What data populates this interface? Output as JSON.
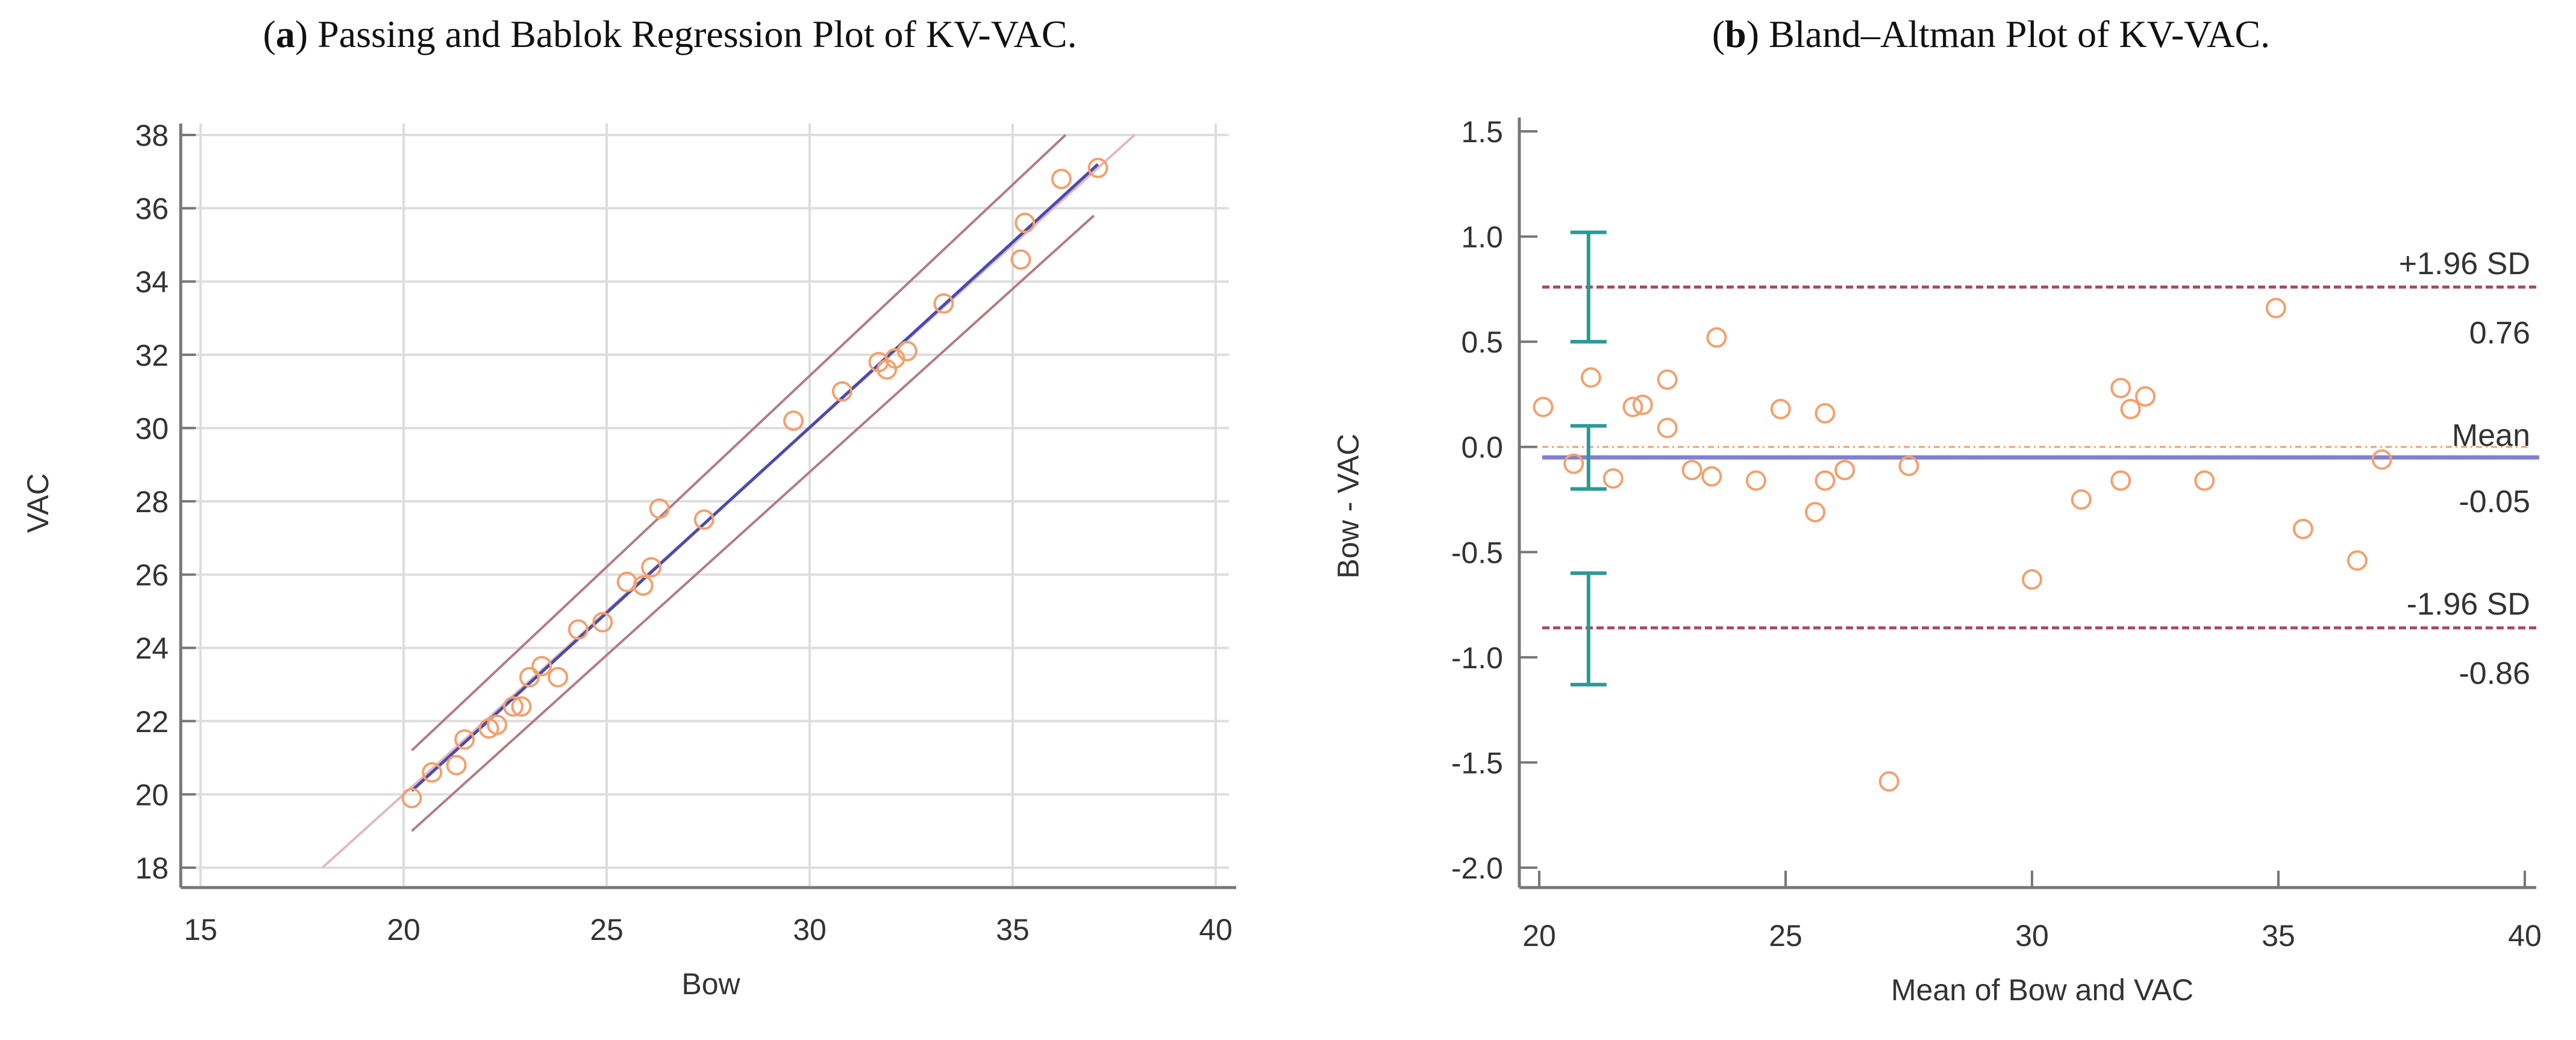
{
  "chart_data": [
    {
      "type": "scatter",
      "panel_letter": "a",
      "title": ") Passing and Bablok Regression Plot of KV-VAC.",
      "xlabel": "Bow",
      "ylabel": "VAC",
      "xlim": [
        15,
        40
      ],
      "ylim": [
        18,
        38
      ],
      "xticks": [
        15,
        20,
        25,
        30,
        35,
        40
      ],
      "yticks": [
        18,
        20,
        22,
        24,
        26,
        28,
        30,
        32,
        34,
        36,
        38
      ],
      "grid": true,
      "points": [
        [
          20.2,
          19.9
        ],
        [
          20.7,
          20.6
        ],
        [
          21.3,
          20.8
        ],
        [
          21.5,
          21.5
        ],
        [
          22.1,
          21.8
        ],
        [
          22.3,
          21.9
        ],
        [
          22.7,
          22.4
        ],
        [
          22.9,
          22.4
        ],
        [
          23.1,
          23.2
        ],
        [
          23.4,
          23.5
        ],
        [
          23.8,
          23.2
        ],
        [
          24.3,
          24.5
        ],
        [
          24.9,
          24.7
        ],
        [
          25.5,
          25.8
        ],
        [
          25.9,
          25.7
        ],
        [
          26.1,
          26.2
        ],
        [
          26.3,
          27.8
        ],
        [
          27.4,
          27.5
        ],
        [
          29.6,
          30.2
        ],
        [
          30.8,
          31.0
        ],
        [
          31.7,
          31.8
        ],
        [
          31.9,
          31.6
        ],
        [
          32.1,
          31.9
        ],
        [
          32.4,
          32.1
        ],
        [
          33.3,
          33.4
        ],
        [
          35.3,
          35.6
        ],
        [
          35.2,
          34.6
        ],
        [
          36.2,
          36.8
        ],
        [
          37.1,
          37.1
        ]
      ],
      "regression_line": [
        [
          20.2,
          20.1
        ],
        [
          37.1,
          37.2
        ]
      ],
      "ci_upper_line": [
        [
          20.2,
          21.2
        ],
        [
          36.3,
          38.0
        ]
      ],
      "ci_lower_line": [
        [
          20.2,
          19.0
        ],
        [
          37.0,
          35.8
        ]
      ],
      "identity_line": [
        [
          18,
          18
        ],
        [
          38,
          38
        ]
      ],
      "colors": {
        "points": "#f4a06c",
        "regression": "#4a4ab0",
        "ci": "#b47a86",
        "identity": "#e2b8bf",
        "grid": "#dddddd",
        "axis": "#777777"
      }
    },
    {
      "type": "scatter",
      "panel_letter": "b",
      "title": ") Bland–Altman Plot of KV-VAC.",
      "xlabel": "Mean of Bow and VAC",
      "ylabel": "Bow - VAC",
      "xlim": [
        20,
        40
      ],
      "ylim": [
        -2.0,
        1.5
      ],
      "xticks": [
        20,
        25,
        30,
        35,
        40
      ],
      "yticks": [
        "1.5",
        "1.0",
        "0.5",
        "0.0",
        "-0.5",
        "-1.0",
        "-1.5",
        "-2.0"
      ],
      "grid": false,
      "points": [
        [
          20.08,
          0.19
        ],
        [
          20.7,
          -0.08
        ],
        [
          21.05,
          0.33
        ],
        [
          21.5,
          -0.15
        ],
        [
          21.9,
          0.19
        ],
        [
          22.1,
          0.2
        ],
        [
          22.6,
          0.32
        ],
        [
          22.6,
          0.09
        ],
        [
          23.1,
          -0.11
        ],
        [
          23.5,
          -0.14
        ],
        [
          23.6,
          0.52
        ],
        [
          24.4,
          -0.16
        ],
        [
          24.9,
          0.18
        ],
        [
          25.6,
          -0.31
        ],
        [
          25.8,
          -0.16
        ],
        [
          25.8,
          0.16
        ],
        [
          26.2,
          -0.11
        ],
        [
          27.1,
          -1.59
        ],
        [
          27.5,
          -0.09
        ],
        [
          30.0,
          -0.63
        ],
        [
          31.0,
          -0.25
        ],
        [
          31.8,
          0.28
        ],
        [
          31.8,
          -0.16
        ],
        [
          32.0,
          0.18
        ],
        [
          32.3,
          0.24
        ],
        [
          33.5,
          -0.16
        ],
        [
          34.95,
          0.66
        ],
        [
          35.5,
          -0.39
        ],
        [
          36.6,
          -0.54
        ],
        [
          37.1,
          -0.06
        ]
      ],
      "mean": -0.05,
      "upper_loa": 0.76,
      "lower_loa": -0.86,
      "zero_line": 0.0,
      "error_bars_x": 21,
      "error_bars": [
        [
          0.5,
          1.02
        ],
        [
          -0.2,
          0.1
        ],
        [
          -1.13,
          -0.6
        ]
      ],
      "annotations": {
        "upper_label": "+1.96 SD",
        "upper_value": "0.76",
        "mean_label": "Mean",
        "mean_value": "-0.05",
        "lower_label": "-1.96 SD",
        "lower_value": "-0.86"
      },
      "colors": {
        "points": "#f4a06c",
        "mean": "#8080d0",
        "loa": "#a84a5a",
        "zero": "#f0a070",
        "error_bars": "#2a9a96",
        "axis": "#777777"
      }
    }
  ]
}
